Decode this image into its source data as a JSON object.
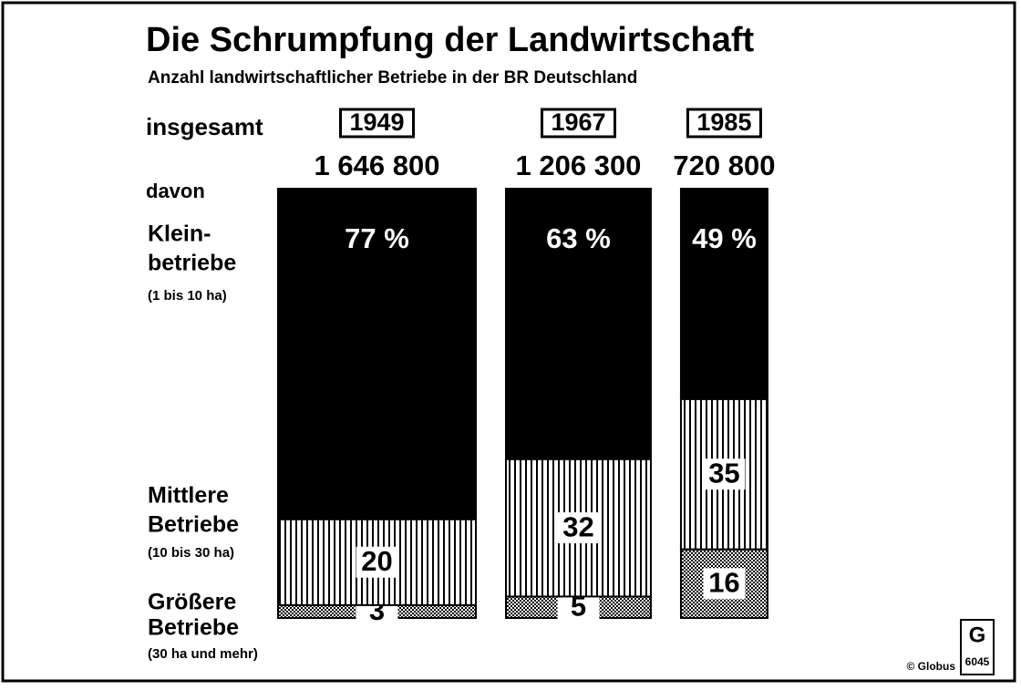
{
  "chart_data": {
    "type": "bar",
    "stacked": true,
    "title": "Die Schrumpfung der Landwirtschaft",
    "subtitle": "Anzahl landwirtschaftlicher Betriebe in der BR Deutschland",
    "categories": [
      "1949",
      "1967",
      "1985"
    ],
    "totals": {
      "name": "insgesamt",
      "values": [
        1646800,
        1206300,
        720800
      ],
      "value_labels": [
        "1 646 800",
        "1 206 300",
        "720 800"
      ]
    },
    "breakdown_label": "davon",
    "series": [
      {
        "name": [
          "Größere",
          "Betriebe"
        ],
        "size": "(30 ha und mehr)",
        "color": "#000000",
        "pattern": "dots",
        "values": [
          3,
          5,
          16
        ]
      },
      {
        "name": [
          "Mittlere",
          "Betriebe"
        ],
        "size": "(10 bis 30 ha)",
        "color": "#000000",
        "pattern": "stripes",
        "values": [
          20,
          32,
          35
        ]
      },
      {
        "name": [
          "Klein-",
          "betriebe"
        ],
        "size": "(1 bis 10 ha)",
        "color": "#000000",
        "pattern": "solid",
        "values": [
          77,
          63,
          49
        ],
        "value_labels": [
          "77 %",
          "63 %",
          "49 %"
        ]
      }
    ],
    "source": "© Globus",
    "code": "6045"
  }
}
